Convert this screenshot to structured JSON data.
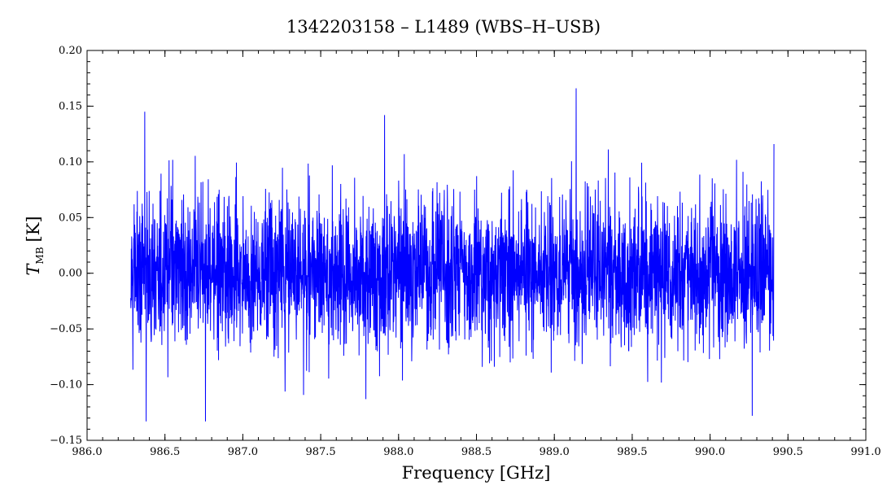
{
  "chart_data": {
    "type": "line",
    "title": "1342203158 – L1489 (WBS–H–USB)",
    "xlabel": "Frequency [GHz]",
    "ylabel_main": "T",
    "ylabel_sub": "MB",
    "ylabel_unit": "[K]",
    "xlim": [
      986.0,
      991.0
    ],
    "ylim": [
      -0.15,
      0.2
    ],
    "xticks": [
      986.0,
      986.5,
      987.0,
      987.5,
      988.0,
      988.5,
      989.0,
      989.5,
      990.0,
      990.5,
      991.0
    ],
    "xtick_labels": [
      "986.0",
      "986.5",
      "987.0",
      "987.5",
      "988.0",
      "988.5",
      "989.0",
      "989.5",
      "990.0",
      "990.5",
      "991.0"
    ],
    "yticks": [
      -0.15,
      -0.1,
      -0.05,
      0.0,
      0.05,
      0.1,
      0.15,
      0.2
    ],
    "ytick_labels": [
      "−0.15",
      "−0.10",
      "−0.05",
      "0.00",
      "0.05",
      "0.10",
      "0.15",
      "0.20"
    ],
    "series": [
      {
        "color": "#0000ff",
        "x_start": 986.28,
        "x_end": 990.41,
        "noise_rms": 0.04,
        "notable_points": [
          {
            "x": 986.37,
            "y": 0.145
          },
          {
            "x": 986.38,
            "y": -0.133
          },
          {
            "x": 986.76,
            "y": -0.133
          },
          {
            "x": 987.79,
            "y": -0.113
          },
          {
            "x": 987.91,
            "y": 0.142
          },
          {
            "x": 989.14,
            "y": 0.166
          },
          {
            "x": 990.27,
            "y": -0.128
          },
          {
            "x": 990.41,
            "y": 0.116
          }
        ]
      }
    ],
    "grid": false
  }
}
